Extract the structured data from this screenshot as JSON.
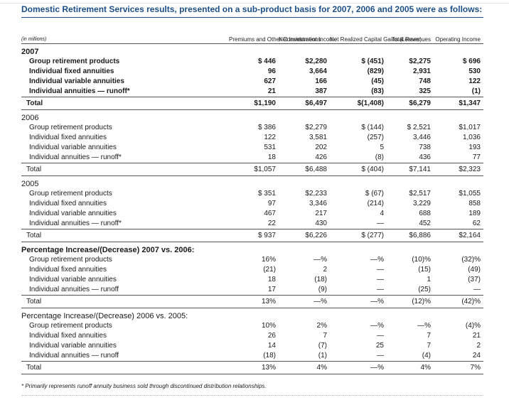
{
  "title": "Domestic Retirement Services results, presented on a sub-product basis for 2007, 2006 and 2005 were as follows:",
  "headers": {
    "label": "(in millions)",
    "col1": "Premiums and Other Considerations",
    "col2": "Net Investment Income",
    "col3": "Net Realized Capital Gains (Losses)",
    "col4": "Total Revenues",
    "col5": "Operating Income"
  },
  "sections": [
    {
      "title": "2007",
      "bold": true,
      "rows": [
        {
          "label": "Group retirement products",
          "v": [
            "$ 446",
            "$2,280",
            "$ (451)",
            "$2,275",
            "$ 696"
          ]
        },
        {
          "label": "Individual fixed annuities",
          "v": [
            "96",
            "3,664",
            "(829)",
            "2,931",
            "530"
          ]
        },
        {
          "label": "Individual variable annuities",
          "v": [
            "627",
            "166",
            "(45)",
            "748",
            "122"
          ]
        },
        {
          "label": "Individual annuities — runoff*",
          "v": [
            "21",
            "387",
            "(83)",
            "325",
            "(1)"
          ]
        }
      ],
      "total": {
        "label": "Total",
        "v": [
          "$1,190",
          "$6,497",
          "$(1,408)",
          "$6,279",
          "$1,347"
        ]
      }
    },
    {
      "title": "2006",
      "bold": false,
      "rows": [
        {
          "label": "Group retirement products",
          "v": [
            "$ 386",
            "$2,279",
            "$ (144)",
            "$ 2,521",
            "$1,017"
          ]
        },
        {
          "label": "Individual fixed annuities",
          "v": [
            "122",
            "3,581",
            "(257)",
            "3,446",
            "1,036"
          ]
        },
        {
          "label": "Individual variable annuities",
          "v": [
            "531",
            "202",
            "5",
            "738",
            "193"
          ]
        },
        {
          "label": "Individual annuities — runoff*",
          "v": [
            "18",
            "426",
            "(8)",
            "436",
            "77"
          ]
        }
      ],
      "total": {
        "label": "Total",
        "v": [
          "$1,057",
          "$6,488",
          "$ (404)",
          "$7,141",
          "$2,323"
        ]
      }
    },
    {
      "title": "2005",
      "bold": false,
      "rows": [
        {
          "label": "Group retirement products",
          "v": [
            "$ 351",
            "$2,233",
            "$ (67)",
            "$2,517",
            "$1,055"
          ]
        },
        {
          "label": "Individual fixed annuities",
          "v": [
            "97",
            "3,346",
            "(214)",
            "3,229",
            "858"
          ]
        },
        {
          "label": "Individual variable annuities",
          "v": [
            "467",
            "217",
            "4",
            "688",
            "189"
          ]
        },
        {
          "label": "Individual annuities — runoff*",
          "v": [
            "22",
            "430",
            "—",
            "452",
            "62"
          ]
        }
      ],
      "total": {
        "label": "Total",
        "v": [
          "$ 937",
          "$6,226",
          "$ (277)",
          "$6,886",
          "$2,164"
        ]
      }
    },
    {
      "title": "Percentage Increase/(Decrease) 2007 vs. 2006:",
      "bold": true,
      "rows": [
        {
          "label": "Group retirement products",
          "v": [
            "16%",
            "—%",
            "—%",
            "(10)%",
            "(32)%"
          ]
        },
        {
          "label": "Individual fixed annuities",
          "v": [
            "(21)",
            "2",
            "—",
            "(15)",
            "(49)"
          ]
        },
        {
          "label": "Individual variable annuities",
          "v": [
            "18",
            "(18)",
            "—",
            "1",
            "(37)"
          ]
        },
        {
          "label": "Individual annuities — runoff",
          "v": [
            "17",
            "(9)",
            "—",
            "(25)",
            "—"
          ]
        }
      ],
      "total": {
        "label": "Total",
        "v": [
          "13%",
          "—%",
          "—%",
          "(12)%",
          "(42)%"
        ]
      }
    },
    {
      "title": "Percentage Increase/(Decrease) 2006 vs. 2005:",
      "bold": false,
      "rows": [
        {
          "label": "Group retirement products",
          "v": [
            "10%",
            "2%",
            "—%",
            "—%",
            "(4)%"
          ]
        },
        {
          "label": "Individual fixed annuities",
          "v": [
            "26",
            "7",
            "—",
            "7",
            "21"
          ]
        },
        {
          "label": "Individual variable annuities",
          "v": [
            "14",
            "(7)",
            "25",
            "7",
            "2"
          ]
        },
        {
          "label": "Individual annuities — runoff",
          "v": [
            "(18)",
            "(1)",
            "—",
            "(4)",
            "24"
          ]
        }
      ],
      "total": {
        "label": "Total",
        "v": [
          "13%",
          "4%",
          "—%",
          "4%",
          "7%"
        ]
      }
    }
  ],
  "footnote": "* Primarily represents runoff annuity business sold through discontinued distribution relationships.",
  "colors": {
    "title": "#1c4f87",
    "rule": "#555555"
  }
}
